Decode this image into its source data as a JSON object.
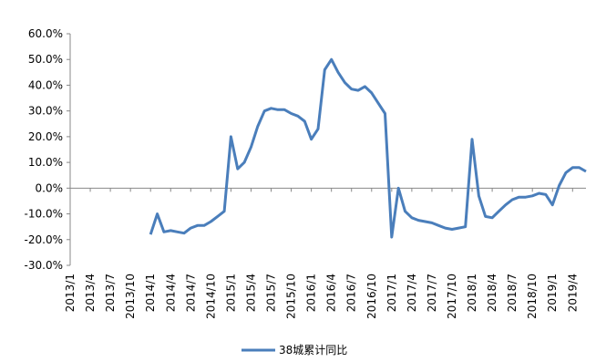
{
  "chart_data": {
    "type": "line",
    "categories": [
      "2013/1",
      null,
      null,
      "2013/4",
      null,
      null,
      "2013/7",
      null,
      null,
      "2013/10",
      null,
      null,
      "2014/1",
      null,
      null,
      "2014/4",
      null,
      null,
      "2014/7",
      null,
      null,
      "2014/10",
      null,
      null,
      "2015/1",
      null,
      null,
      "2015/4",
      null,
      null,
      "2015/7",
      null,
      null,
      "2015/10",
      null,
      null,
      "2016/1",
      null,
      null,
      "2016/4",
      null,
      null,
      "2016/7",
      null,
      null,
      "2016/10",
      null,
      null,
      "2017/1",
      null,
      null,
      "2017/4",
      null,
      null,
      "2017/7",
      null,
      null,
      "2017/10",
      null,
      null,
      "2018/1",
      null,
      null,
      "2018/4",
      null,
      null,
      "2018/7",
      null,
      null,
      "2018/10",
      null,
      null,
      "2019/1",
      null,
      null,
      "2019/4",
      null,
      null
    ],
    "series": [
      {
        "name": "38城累计同比",
        "color": "#4a7ebb",
        "values": [
          null,
          null,
          null,
          null,
          null,
          null,
          null,
          null,
          null,
          null,
          null,
          null,
          -18,
          -10,
          -17,
          -16.5,
          -17,
          -17.5,
          -15.5,
          -14.5,
          -14.5,
          -13,
          -11,
          -9,
          20,
          7.5,
          10,
          16,
          24,
          30,
          31,
          30.5,
          30.5,
          29,
          28,
          26,
          19,
          23,
          46,
          50,
          45,
          41,
          38.5,
          38,
          39.5,
          37,
          33,
          29,
          -19,
          0,
          -9,
          -11.5,
          -12.5,
          -13,
          -13.5,
          -14.5,
          -15.5,
          -16,
          -15.5,
          -15,
          19,
          -3,
          -11,
          -11.5,
          -9,
          -6.5,
          -4.5,
          -3.5,
          -3.5,
          -3,
          -2,
          -2.5,
          -6.5,
          1,
          6,
          8,
          8,
          6.5
        ]
      }
    ],
    "ylim": [
      -30,
      60
    ],
    "yticks": [
      {
        "value": -30,
        "label": "-30.0%"
      },
      {
        "value": -20,
        "label": "-20.0%"
      },
      {
        "value": -10,
        "label": "-10.0%"
      },
      {
        "value": 0,
        "label": "0.0%"
      },
      {
        "value": 10,
        "label": "10.0%"
      },
      {
        "value": 20,
        "label": "20.0%"
      },
      {
        "value": 30,
        "label": "30.0%"
      },
      {
        "value": 40,
        "label": "40.0%"
      },
      {
        "value": 50,
        "label": "50.0%"
      },
      {
        "value": 60,
        "label": "60.0%"
      }
    ],
    "grid": false,
    "legend": "bottom"
  }
}
